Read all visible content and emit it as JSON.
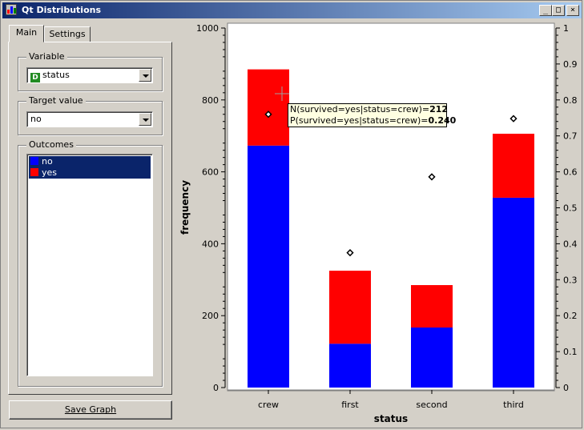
{
  "window": {
    "title": "Qt Distributions",
    "minimize_glyph": "_",
    "maximize_glyph": "□",
    "close_glyph": "×"
  },
  "tabs": [
    {
      "label": "Main",
      "active": true
    },
    {
      "label": "Settings",
      "active": false
    }
  ],
  "variable": {
    "group_label": "Variable",
    "type_badge": "D",
    "selected": "status"
  },
  "target_value": {
    "group_label": "Target value",
    "selected": "no"
  },
  "outcomes": {
    "group_label": "Outcomes",
    "items": [
      {
        "label": "no",
        "color": "#0000ff",
        "selected": true
      },
      {
        "label": "yes",
        "color": "#ff0000",
        "selected": true
      }
    ]
  },
  "save_button": {
    "label": "Save Graph"
  },
  "tooltip": {
    "line1_prefix": "N(survived=yes|status=crew)=",
    "line1_value": "212",
    "line2_prefix": "P(survived=yes|status=crew)=",
    "line2_value": "0.240"
  },
  "chart_data": {
    "type": "bar",
    "stacked": true,
    "categories": [
      "crew",
      "first",
      "second",
      "third"
    ],
    "series": [
      {
        "name": "no",
        "color": "#0000ff",
        "values": [
          673,
          122,
          167,
          528
        ]
      },
      {
        "name": "yes",
        "color": "#ff0000",
        "values": [
          212,
          203,
          118,
          178
        ]
      }
    ],
    "probability_markers": {
      "values": [
        0.76,
        0.375,
        0.586,
        0.748
      ]
    },
    "xlabel": "status",
    "ylabel": "frequency",
    "ylim": [
      0,
      1000
    ],
    "y_ticks": [
      "0",
      "200",
      "400",
      "600",
      "800",
      "1000"
    ],
    "y2lim": [
      0,
      1
    ],
    "y2_ticks": [
      "0",
      "0.1",
      "0.2",
      "0.3",
      "0.4",
      "0.5",
      "0.6",
      "0.7",
      "0.8",
      "0.9",
      "1"
    ],
    "grid": false,
    "legend": "none"
  }
}
